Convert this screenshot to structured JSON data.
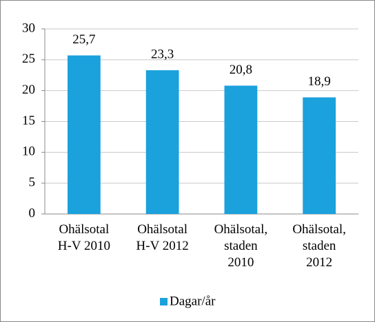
{
  "chart_data": {
    "type": "bar",
    "categories": [
      "Ohälsotal\nH-V 2010",
      "Ohälsotal\nH-V 2012",
      "Ohälsotal,\nstaden\n2010",
      "Ohälsotal,\nstaden\n2012"
    ],
    "series": [
      {
        "name": "Dagar/år",
        "color": "#1ba1dc",
        "values": [
          25.7,
          23.3,
          20.8,
          18.9
        ],
        "value_labels": [
          "25,7",
          "23,3",
          "20,8",
          "18,9"
        ]
      }
    ],
    "ylim": [
      0,
      30
    ],
    "yticks": [
      0,
      5,
      10,
      15,
      20,
      25,
      30
    ],
    "grid": true,
    "legend": "bottom"
  }
}
